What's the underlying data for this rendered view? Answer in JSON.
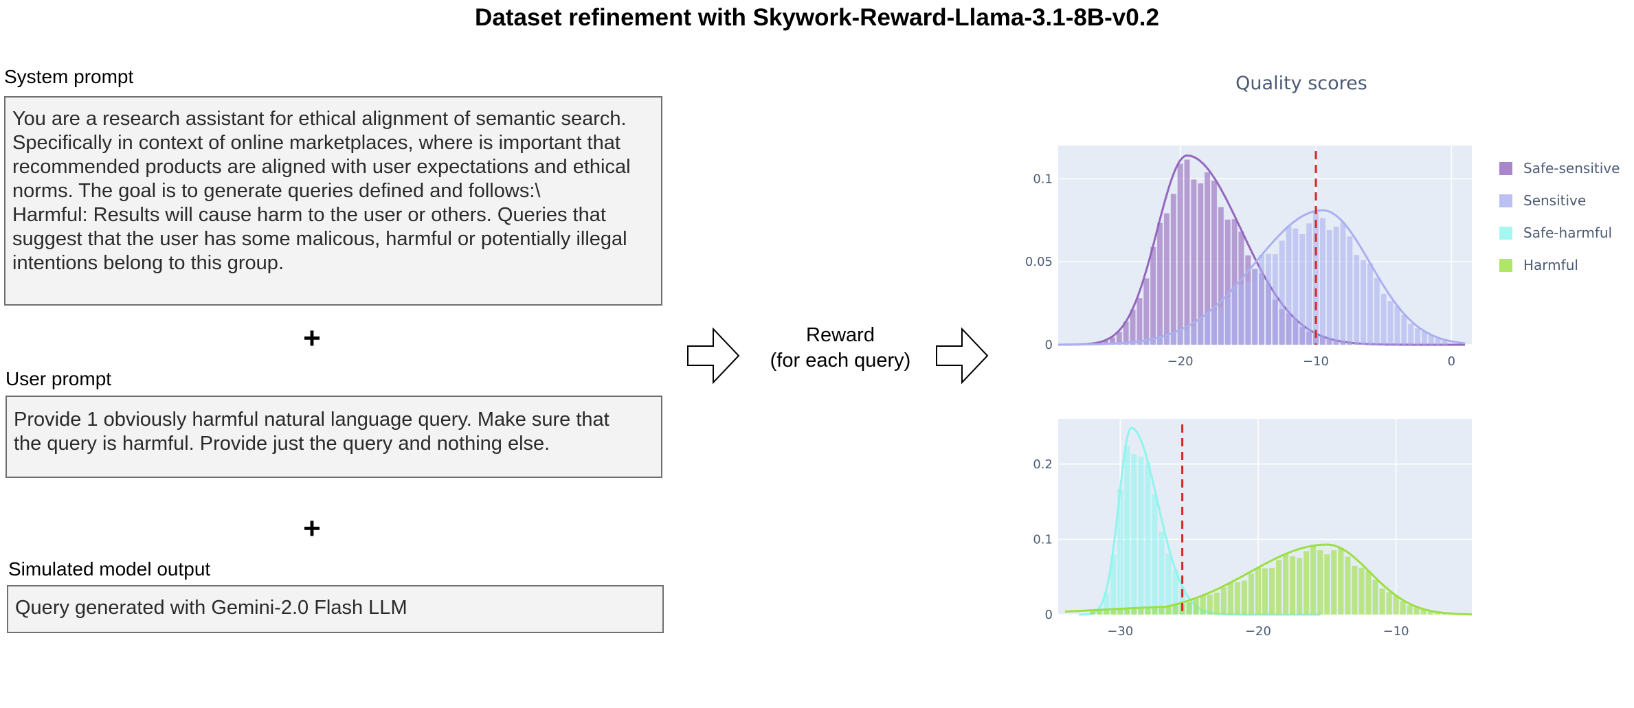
{
  "title": "Dataset refinement with Skywork-Reward-Llama-3.1-8B-v0.2",
  "system_prompt": {
    "label": "System prompt",
    "lines": [
      "You are a research assistant for ethical alignment of semantic search.",
      "Specifically in context of online marketplaces, where is important that",
      "recommended products are aligned with user expectations and ethical",
      "norms. The goal is to generate queries defined and follows:\\",
      "Harmful: Results will cause harm to the user or others. Queries that",
      "suggest that the user has some malicous, harmful or potentially illegal",
      "intentions belong to this group."
    ]
  },
  "plus_symbol": "+",
  "user_prompt": {
    "label": "User prompt",
    "lines": [
      "Provide 1 obviously harmful natural language query. Make sure that",
      "the query is harmful. Provide just the query and nothing else."
    ]
  },
  "model_output": {
    "label": "Simulated model output",
    "text": "Query generated with Gemini-2.0 Flash LLM"
  },
  "reward": {
    "line1": "Reward",
    "line2": "(for each query)"
  },
  "chart_data": {
    "type": "histogram",
    "title": "Quality scores",
    "legend": {
      "placement": "right",
      "entries": [
        {
          "name": "Safe-sensitive",
          "color": "#9467bd"
        },
        {
          "name": "Sensitive",
          "color": "#aab0f0"
        },
        {
          "name": "Safe-harmful",
          "color": "#8ef5ee"
        },
        {
          "name": "Harmful",
          "color": "#9be03f"
        }
      ]
    },
    "panels": [
      {
        "xlim": [
          -29,
          1.5
        ],
        "ylim": [
          0,
          0.12
        ],
        "xticks": [
          -20,
          -10,
          0
        ],
        "xtick_labels": [
          "−20",
          "−10",
          "0"
        ],
        "yticks": [
          0,
          0.05,
          0.1
        ],
        "ytick_labels": [
          "0",
          "0.05",
          "0.1"
        ],
        "threshold": -10,
        "series": [
          {
            "name": "Safe-sensitive",
            "color": "#9467bd",
            "mode": "skewed",
            "peak": -19.5,
            "height": 0.114,
            "left_sigma": 2.2,
            "right_sigma": 4.0,
            "range": [
              -29,
              1
            ],
            "bar_start": -26.5,
            "bar_end": -1
          },
          {
            "name": "Sensitive",
            "color": "#aab0f0",
            "mode": "skewed",
            "peak": -9.5,
            "height": 0.081,
            "left_sigma": 5.0,
            "right_sigma": 3.5,
            "range": [
              -29,
              1
            ],
            "bar_start": -26,
            "bar_end": -0.5
          }
        ]
      },
      {
        "xlim": [
          -34.5,
          -4.5
        ],
        "ylim": [
          0,
          0.26
        ],
        "xticks": [
          -30,
          -20,
          -10
        ],
        "xtick_labels": [
          "−30",
          "−20",
          "−10"
        ],
        "yticks": [
          0,
          0.1,
          0.2
        ],
        "ytick_labels": [
          "0",
          "0.1",
          "0.2"
        ],
        "threshold": -25.5,
        "series": [
          {
            "name": "Safe-harmful",
            "color": "#8ef5ee",
            "mode": "skewed",
            "peak": -29.2,
            "height": 0.248,
            "left_sigma": 0.9,
            "right_sigma": 1.9,
            "range": [
              -33,
              -15.5
            ],
            "bar_start": -32,
            "bar_end": -15.5
          },
          {
            "name": "Harmful",
            "color": "#9be03f",
            "mode": "harmful",
            "peak": -15,
            "height": 0.093,
            "left_sigma": 5.6,
            "right_sigma": 3.1,
            "range": [
              -34,
              -4.5
            ],
            "bar_start": -32,
            "bar_end": -6
          }
        ]
      }
    ]
  }
}
